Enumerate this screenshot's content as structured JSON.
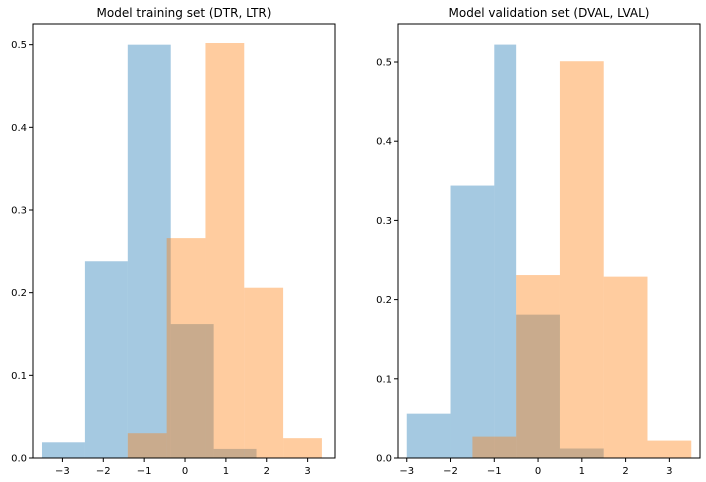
{
  "colors": {
    "series_a": "#1f77b4",
    "series_b": "#ff7f0e",
    "bar_alpha": 0.4,
    "axes_edge": "#000000",
    "background": "#ffffff"
  },
  "chart_data": [
    {
      "type": "bar",
      "subtype": "histogram-overlay",
      "title": "Model training set (DTR, LTR)",
      "xlabel": "",
      "ylabel": "",
      "xlim": [
        -3.72,
        3.67
      ],
      "ylim": [
        0,
        0.525
      ],
      "xticks": [
        -3,
        -2,
        -1,
        0,
        1,
        2,
        3
      ],
      "yticks": [
        0.0,
        0.1,
        0.2,
        0.3,
        0.4,
        0.5
      ],
      "xtick_labels": [
        "−3",
        "−2",
        "−1",
        "0",
        "1",
        "2",
        "3"
      ],
      "ytick_labels": [
        "0.0",
        "0.1",
        "0.2",
        "0.3",
        "0.4",
        "0.5"
      ],
      "grid": false,
      "legend": "none",
      "series": [
        {
          "bins": [
            -3.5,
            -2.45,
            -1.4,
            -0.35,
            0.7,
            1.75
          ],
          "values": [
            0.019,
            0.238,
            0.5,
            0.162,
            0.011
          ]
        },
        {
          "bins": [
            -1.4,
            -0.45,
            0.5,
            1.45,
            2.4,
            3.35
          ],
          "values": [
            0.03,
            0.266,
            0.502,
            0.206,
            0.024
          ]
        }
      ]
    },
    {
      "type": "bar",
      "subtype": "histogram-overlay",
      "title": "Model validation set (DVAL, LVAL)",
      "xlabel": "",
      "ylabel": "",
      "xlim": [
        -3.2,
        3.7
      ],
      "ylim": [
        0,
        0.548
      ],
      "xticks": [
        -3,
        -2,
        -1,
        0,
        1,
        2,
        3
      ],
      "yticks": [
        0.0,
        0.1,
        0.2,
        0.3,
        0.4,
        0.5
      ],
      "xtick_labels": [
        "−3",
        "−2",
        "−1",
        "0",
        "1",
        "2",
        "3"
      ],
      "ytick_labels": [
        "0.0",
        "0.1",
        "0.2",
        "0.3",
        "0.4",
        "0.5"
      ],
      "grid": false,
      "legend": "none",
      "series": [
        {
          "bins": [
            -3.0,
            -2.0,
            -1.0,
            -0.5,
            0.5,
            1.5
          ],
          "values": [
            0.056,
            0.344,
            0.522,
            0.181,
            0.012
          ]
        },
        {
          "bins": [
            -1.5,
            -0.5,
            0.5,
            1.5,
            2.5,
            3.5
          ],
          "values": [
            0.027,
            0.231,
            0.501,
            0.229,
            0.022
          ]
        }
      ]
    }
  ]
}
